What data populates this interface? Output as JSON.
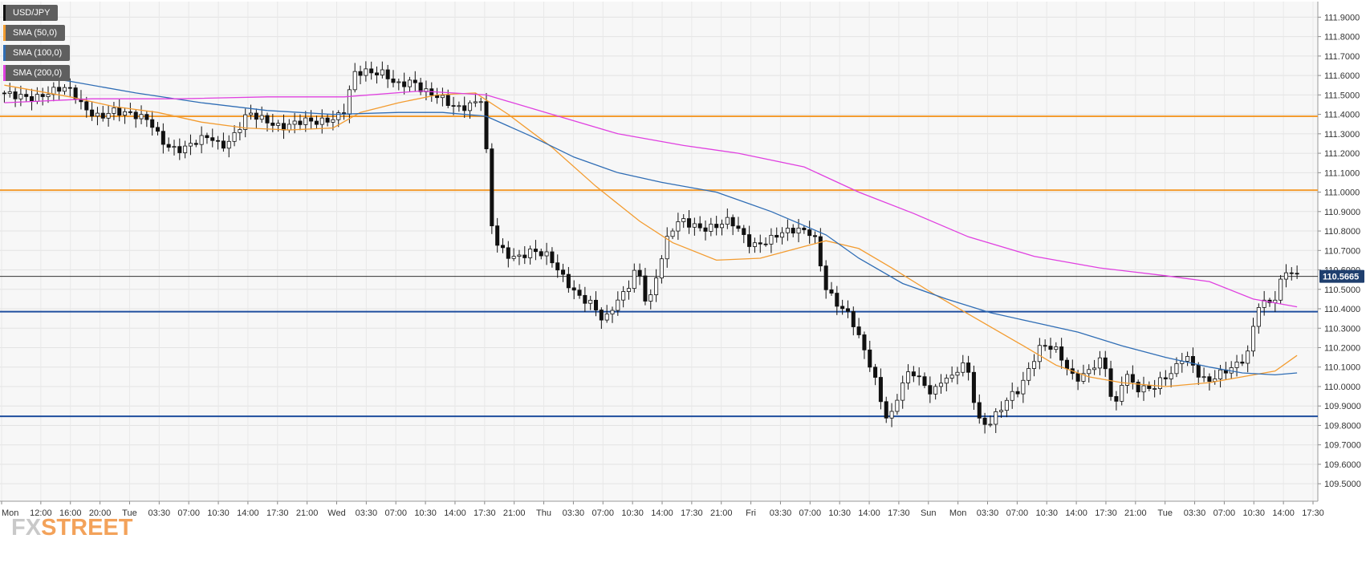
{
  "legend": [
    {
      "label": "USD/JPY",
      "color": "#111111"
    },
    {
      "label": "SMA (50,0)",
      "color": "#f39c30"
    },
    {
      "label": "SMA (100,0)",
      "color": "#2f6db5"
    },
    {
      "label": "SMA (200,0)",
      "color": "#e040e0"
    }
  ],
  "watermark": {
    "part1": "FX",
    "part2": "STREET"
  },
  "current_price_label": "110.5665",
  "chart_data": {
    "type": "candlestick",
    "title": "USD/JPY",
    "ylim": [
      109.41,
      111.98
    ],
    "grid": true,
    "y_ticks": [
      "111.9000",
      "111.8000",
      "111.7000",
      "111.6000",
      "111.5000",
      "111.4000",
      "111.3000",
      "111.2000",
      "111.1000",
      "111.0000",
      "110.9000",
      "110.8000",
      "110.7000",
      "110.6000",
      "110.5000",
      "110.4000",
      "110.3000",
      "110.2000",
      "110.1000",
      "110.0000",
      "109.9000",
      "109.8000",
      "109.7000",
      "109.6000",
      "109.5000"
    ],
    "x_ticks": [
      "Mon",
      "12:00",
      "16:00",
      "20:00",
      "Tue",
      "03:30",
      "07:00",
      "10:30",
      "14:00",
      "17:30",
      "21:00",
      "Wed",
      "03:30",
      "07:00",
      "10:30",
      "14:00",
      "17:30",
      "21:00",
      "Thu",
      "03:30",
      "07:00",
      "10:30",
      "14:00",
      "17:30",
      "21:00",
      "Fri",
      "03:30",
      "07:00",
      "10:30",
      "14:00",
      "17:30",
      "Sun",
      "Mon",
      "03:30",
      "07:00",
      "10:30",
      "14:00",
      "17:30",
      "21:00",
      "Tue",
      "03:30",
      "07:00",
      "10:30",
      "14:00",
      "17:30"
    ],
    "horizontal_levels": [
      {
        "value": 111.39,
        "color": "#f39c30"
      },
      {
        "value": 111.01,
        "color": "#f39c30"
      },
      {
        "value": 110.385,
        "color": "#1f4e9e"
      },
      {
        "value": 109.847,
        "color": "#1f4e9e"
      },
      {
        "value": 110.5665,
        "color": "#333333"
      }
    ],
    "price_path": [
      [
        0,
        111.51
      ],
      [
        6,
        111.48
      ],
      [
        11,
        111.54
      ],
      [
        13,
        111.52
      ],
      [
        15,
        111.43
      ],
      [
        18,
        111.38
      ],
      [
        20,
        111.42
      ],
      [
        24,
        111.4
      ],
      [
        27,
        111.37
      ],
      [
        29,
        111.27
      ],
      [
        31,
        111.22
      ],
      [
        33,
        111.22
      ],
      [
        36,
        111.27
      ],
      [
        38,
        111.29
      ],
      [
        40,
        111.23
      ],
      [
        42,
        111.27
      ],
      [
        45,
        111.41
      ],
      [
        48,
        111.37
      ],
      [
        51,
        111.33
      ],
      [
        55,
        111.37
      ],
      [
        58,
        111.36
      ],
      [
        61,
        111.38
      ],
      [
        63,
        111.43
      ],
      [
        64,
        111.61
      ],
      [
        66,
        111.62
      ],
      [
        70,
        111.61
      ],
      [
        72,
        111.55
      ],
      [
        75,
        111.57
      ],
      [
        77,
        111.52
      ],
      [
        80,
        111.49
      ],
      [
        83,
        111.43
      ],
      [
        85,
        111.44
      ],
      [
        87,
        111.47
      ],
      [
        88,
        111.49
      ],
      [
        89,
        110.92
      ],
      [
        90,
        110.75
      ],
      [
        92,
        110.68
      ],
      [
        94,
        110.66
      ],
      [
        97,
        110.7
      ],
      [
        100,
        110.67
      ],
      [
        102,
        110.58
      ],
      [
        105,
        110.47
      ],
      [
        108,
        110.42
      ],
      [
        110,
        110.33
      ],
      [
        112,
        110.43
      ],
      [
        114,
        110.49
      ],
      [
        116,
        110.62
      ],
      [
        118,
        110.4
      ],
      [
        120,
        110.62
      ],
      [
        122,
        110.8
      ],
      [
        124,
        110.86
      ],
      [
        126,
        110.83
      ],
      [
        128,
        110.81
      ],
      [
        130,
        110.82
      ],
      [
        133,
        110.86
      ],
      [
        135,
        110.79
      ],
      [
        137,
        110.72
      ],
      [
        140,
        110.75
      ],
      [
        142,
        110.79
      ],
      [
        145,
        110.81
      ],
      [
        148,
        110.79
      ],
      [
        149,
        110.72
      ],
      [
        150,
        110.53
      ],
      [
        152,
        110.44
      ],
      [
        155,
        110.36
      ],
      [
        157,
        110.22
      ],
      [
        159,
        110.08
      ],
      [
        161,
        109.88
      ],
      [
        162,
        109.81
      ],
      [
        164,
        109.99
      ],
      [
        166,
        110.09
      ],
      [
        168,
        110.02
      ],
      [
        170,
        109.96
      ],
      [
        172,
        110.05
      ],
      [
        174,
        110.04
      ],
      [
        175,
        110.14
      ],
      [
        177,
        110.04
      ],
      [
        178,
        109.83
      ],
      [
        180,
        109.8
      ],
      [
        182,
        109.87
      ],
      [
        184,
        109.95
      ],
      [
        186,
        109.99
      ],
      [
        188,
        110.12
      ],
      [
        190,
        110.22
      ],
      [
        193,
        110.18
      ],
      [
        195,
        110.06
      ],
      [
        197,
        110.04
      ],
      [
        199,
        110.1
      ],
      [
        201,
        110.14
      ],
      [
        202,
        110.06
      ],
      [
        203,
        109.85
      ],
      [
        205,
        110.08
      ],
      [
        207,
        109.99
      ],
      [
        210,
        109.99
      ],
      [
        212,
        110.04
      ],
      [
        214,
        110.08
      ],
      [
        216,
        110.17
      ],
      [
        218,
        110.08
      ],
      [
        220,
        110.02
      ],
      [
        222,
        110.06
      ],
      [
        224,
        110.09
      ],
      [
        226,
        110.12
      ],
      [
        228,
        110.19
      ],
      [
        229,
        110.42
      ],
      [
        231,
        110.43
      ],
      [
        233,
        110.46
      ],
      [
        234,
        110.61
      ],
      [
        236,
        110.57
      ]
    ],
    "series": [
      {
        "name": "SMA (50,0)",
        "color": "#f39c30",
        "points": [
          [
            0,
            111.55
          ],
          [
            12,
            111.49
          ],
          [
            20,
            111.44
          ],
          [
            28,
            111.41
          ],
          [
            36,
            111.36
          ],
          [
            44,
            111.33
          ],
          [
            52,
            111.32
          ],
          [
            60,
            111.33
          ],
          [
            65,
            111.41
          ],
          [
            72,
            111.46
          ],
          [
            79,
            111.5
          ],
          [
            86,
            111.51
          ],
          [
            92,
            111.4
          ],
          [
            100,
            111.23
          ],
          [
            108,
            111.03
          ],
          [
            116,
            110.85
          ],
          [
            122,
            110.74
          ],
          [
            130,
            110.65
          ],
          [
            138,
            110.66
          ],
          [
            146,
            110.72
          ],
          [
            150,
            110.75
          ],
          [
            156,
            110.71
          ],
          [
            162,
            110.61
          ],
          [
            170,
            110.47
          ],
          [
            178,
            110.34
          ],
          [
            186,
            110.21
          ],
          [
            192,
            110.11
          ],
          [
            198,
            110.05
          ],
          [
            204,
            110.02
          ],
          [
            212,
            110.0
          ],
          [
            220,
            110.02
          ],
          [
            226,
            110.05
          ],
          [
            232,
            110.08
          ],
          [
            236,
            110.16
          ]
        ]
      },
      {
        "name": "SMA (100,0)",
        "color": "#2f6db5",
        "points": [
          [
            0,
            111.62
          ],
          [
            12,
            111.57
          ],
          [
            24,
            111.51
          ],
          [
            36,
            111.46
          ],
          [
            48,
            111.42
          ],
          [
            60,
            111.4
          ],
          [
            72,
            111.41
          ],
          [
            80,
            111.41
          ],
          [
            88,
            111.39
          ],
          [
            96,
            111.29
          ],
          [
            104,
            111.18
          ],
          [
            112,
            111.1
          ],
          [
            120,
            111.05
          ],
          [
            130,
            111.0
          ],
          [
            140,
            110.9
          ],
          [
            150,
            110.78
          ],
          [
            156,
            110.66
          ],
          [
            164,
            110.53
          ],
          [
            172,
            110.45
          ],
          [
            180,
            110.38
          ],
          [
            188,
            110.33
          ],
          [
            196,
            110.28
          ],
          [
            204,
            110.21
          ],
          [
            212,
            110.15
          ],
          [
            220,
            110.1
          ],
          [
            226,
            110.07
          ],
          [
            232,
            110.06
          ],
          [
            236,
            110.07
          ]
        ]
      },
      {
        "name": "SMA (200,0)",
        "color": "#e040e0",
        "points": [
          [
            0,
            111.46
          ],
          [
            16,
            111.48
          ],
          [
            32,
            111.48
          ],
          [
            48,
            111.49
          ],
          [
            62,
            111.49
          ],
          [
            76,
            111.52
          ],
          [
            88,
            111.5
          ],
          [
            100,
            111.4
          ],
          [
            112,
            111.3
          ],
          [
            124,
            111.24
          ],
          [
            134,
            111.2
          ],
          [
            146,
            111.13
          ],
          [
            156,
            111.0
          ],
          [
            166,
            110.89
          ],
          [
            176,
            110.77
          ],
          [
            188,
            110.67
          ],
          [
            200,
            110.61
          ],
          [
            212,
            110.57
          ],
          [
            220,
            110.54
          ],
          [
            228,
            110.45
          ],
          [
            236,
            110.41
          ]
        ]
      }
    ]
  }
}
